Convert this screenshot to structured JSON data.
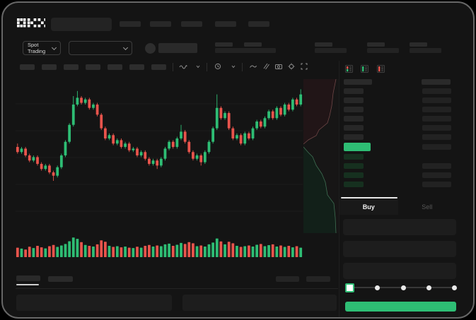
{
  "window": {
    "brand": "OKX"
  },
  "colors": {
    "green": "#2ebd74",
    "red": "#e8544c",
    "background": "#141414"
  },
  "header": {
    "logo_text": "OKX",
    "nav_placeholder_count": 5
  },
  "subheader": {
    "market_type_selector": {
      "label": "Spot Trading"
    },
    "pair_selector": {
      "value": ""
    },
    "stat_placeholder_count": 5
  },
  "chart_toolbar": {
    "placeholder_count": 7,
    "icons": [
      "wave-icon",
      "chevron-down-icon",
      "clock-icon",
      "chevron-down-icon",
      "trend-line-icon",
      "draw-tools-icon",
      "camera-icon",
      "settings-gear-icon",
      "fullscreen-icon"
    ]
  },
  "chart_data": {
    "type": "candlestick",
    "title": "",
    "price_axis_visible": false,
    "time_axis_visible": false,
    "units": "normalized 0-100 (no axis labels visible in mockup)",
    "grid": "faint horizontal lines",
    "open": [
      55,
      52,
      54,
      50,
      47,
      49,
      45,
      42,
      44,
      40,
      38,
      43,
      50,
      58,
      68,
      80,
      84,
      81,
      83,
      78,
      80,
      74,
      66,
      60,
      62,
      57,
      59,
      55,
      57,
      53,
      54,
      50,
      52,
      48,
      45,
      47,
      44,
      48,
      54,
      58,
      55,
      60,
      64,
      58,
      52,
      48,
      50,
      46,
      52,
      58,
      66,
      78,
      72,
      75,
      66,
      60,
      62,
      57,
      63,
      60,
      66,
      70,
      67,
      72,
      76,
      72,
      78,
      74,
      80,
      77,
      83,
      80
    ],
    "close": [
      52,
      54,
      50,
      47,
      49,
      45,
      42,
      44,
      40,
      38,
      43,
      50,
      58,
      68,
      80,
      84,
      81,
      83,
      78,
      80,
      74,
      66,
      60,
      62,
      57,
      59,
      55,
      57,
      53,
      54,
      50,
      52,
      48,
      45,
      47,
      44,
      48,
      54,
      58,
      55,
      60,
      64,
      58,
      52,
      48,
      50,
      46,
      52,
      58,
      66,
      78,
      72,
      75,
      66,
      60,
      62,
      57,
      63,
      60,
      66,
      70,
      67,
      72,
      76,
      72,
      78,
      74,
      80,
      77,
      83,
      80,
      86
    ],
    "high": [
      57,
      55,
      55,
      51,
      50,
      50,
      46,
      45,
      45,
      41,
      44,
      51,
      59,
      69,
      85,
      88,
      85,
      84,
      84,
      81,
      81,
      75,
      67,
      63,
      63,
      60,
      60,
      58,
      58,
      55,
      55,
      53,
      53,
      49,
      48,
      48,
      49,
      55,
      59,
      59,
      61,
      68,
      65,
      59,
      53,
      51,
      51,
      53,
      59,
      67,
      86,
      79,
      76,
      76,
      67,
      63,
      63,
      64,
      64,
      67,
      71,
      71,
      73,
      77,
      77,
      79,
      79,
      81,
      81,
      84,
      84,
      89
    ],
    "low": [
      51,
      51,
      49,
      46,
      46,
      44,
      41,
      41,
      39,
      35,
      37,
      42,
      49,
      57,
      67,
      79,
      80,
      80,
      77,
      77,
      73,
      65,
      59,
      59,
      56,
      56,
      54,
      54,
      52,
      52,
      49,
      49,
      47,
      44,
      44,
      42,
      43,
      47,
      53,
      54,
      54,
      59,
      57,
      51,
      47,
      47,
      44,
      45,
      51,
      57,
      65,
      71,
      71,
      65,
      59,
      59,
      56,
      56,
      59,
      59,
      65,
      66,
      66,
      71,
      71,
      71,
      73,
      73,
      76,
      76,
      79,
      79
    ],
    "volume": [
      40,
      35,
      30,
      45,
      38,
      50,
      42,
      36,
      48,
      55,
      44,
      52,
      60,
      75,
      95,
      88,
      70,
      55,
      50,
      46,
      58,
      80,
      72,
      50,
      44,
      48,
      42,
      46,
      40,
      38,
      45,
      40,
      50,
      55,
      46,
      52,
      48,
      58,
      62,
      50,
      56,
      66,
      60,
      70,
      64,
      48,
      52,
      46,
      58,
      68,
      90,
      74,
      58,
      72,
      64,
      50,
      44,
      48,
      52,
      46,
      56,
      60,
      48,
      54,
      58,
      46,
      52,
      44,
      50,
      42,
      48,
      40
    ]
  },
  "depth_profile": {
    "description": "vertical market depth beside chart: asks shaded red (top), bids shaded green (bottom)",
    "asks_outline": [
      [
        46,
        0
      ],
      [
        42,
        20
      ],
      [
        40,
        38
      ],
      [
        37,
        52
      ],
      [
        34,
        62
      ],
      [
        22,
        72
      ],
      [
        18,
        80
      ],
      [
        7,
        86
      ],
      [
        0,
        92
      ]
    ],
    "bids_outline": [
      [
        0,
        96
      ],
      [
        7,
        104
      ],
      [
        13,
        110
      ],
      [
        18,
        122
      ],
      [
        26,
        134
      ],
      [
        31,
        146
      ],
      [
        34,
        164
      ],
      [
        43,
        176
      ],
      [
        45,
        196
      ],
      [
        46,
        218
      ]
    ]
  },
  "orderbook": {
    "view_mode_icons": [
      "book-combined-icon",
      "book-bids-icon",
      "book-asks-icon"
    ],
    "rows": [
      {
        "side": "ask",
        "left": true,
        "right": true
      },
      {
        "side": "ask",
        "left": true,
        "right": true
      },
      {
        "side": "ask",
        "left": true,
        "right": true
      },
      {
        "side": "ask",
        "left": true,
        "right": true
      },
      {
        "side": "ask",
        "left": true,
        "right": true
      },
      {
        "side": "ask",
        "left": true,
        "right": true
      },
      {
        "side": "last-price",
        "left": true,
        "right": true
      },
      {
        "side": "bid",
        "left": true,
        "right": false
      },
      {
        "side": "bid",
        "left": true,
        "right": true
      },
      {
        "side": "bid",
        "left": true,
        "right": true
      },
      {
        "side": "bid",
        "left": true,
        "right": true
      }
    ]
  },
  "trade_panel": {
    "tabs": [
      {
        "label": "Buy",
        "active": true
      },
      {
        "label": "Sell",
        "active": false
      }
    ],
    "field_count": 3,
    "slider": {
      "steps": 5,
      "active_step": 0
    },
    "submit_button": {
      "label": "",
      "color": "green"
    }
  },
  "bottom_panel": {
    "tab_placeholder_count": 2,
    "active_tab_index": 0,
    "right_placeholder_count": 2,
    "input_placeholder_count": 2
  }
}
